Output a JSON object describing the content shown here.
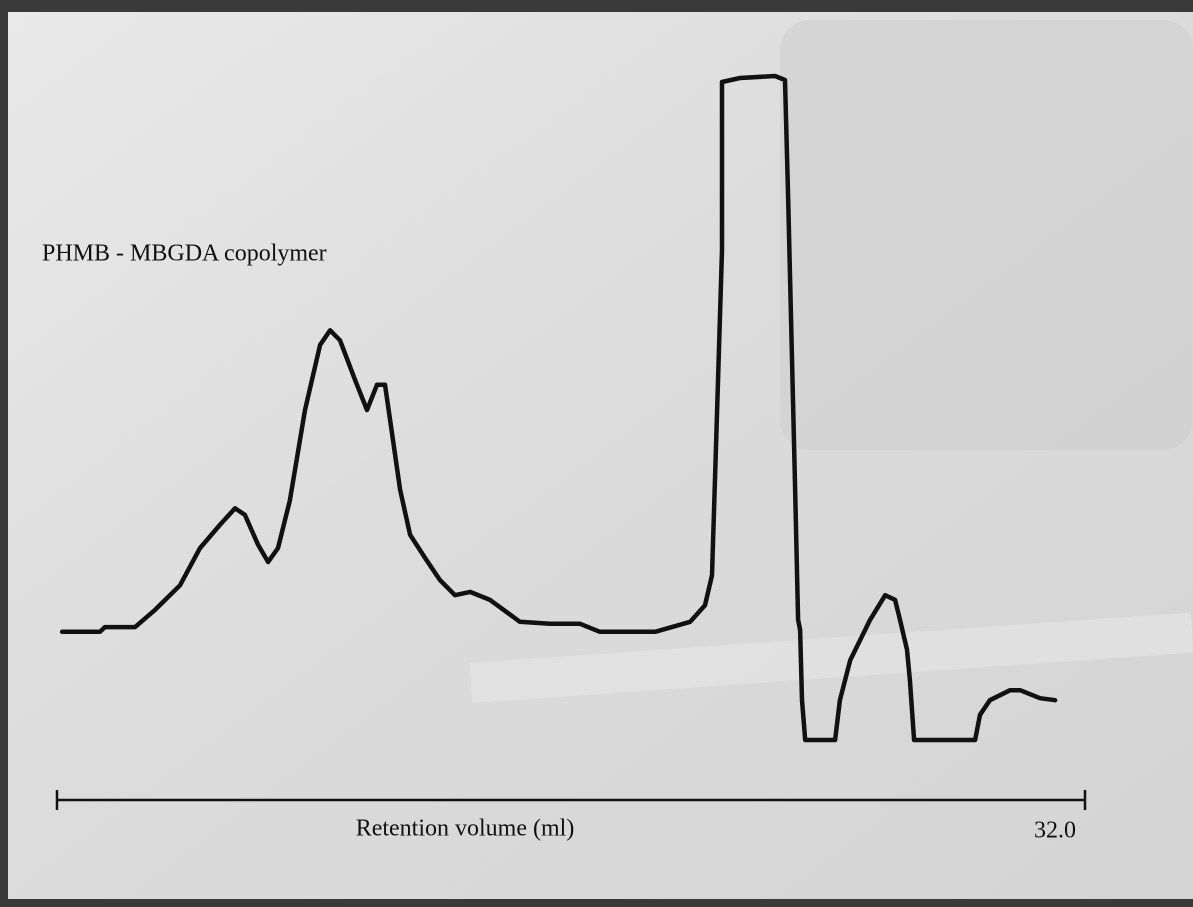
{
  "chart_data": {
    "type": "line",
    "annotation": "PHMB - MBGDA copolymer",
    "x_label": "Retention volume (ml)",
    "xlim": [
      0,
      32
    ],
    "xticks": [
      {
        "value": 32,
        "label": "32.0"
      }
    ],
    "ylim": [
      0,
      100
    ],
    "color": "#111111",
    "series": [
      {
        "x": [
          0.16,
          1.34,
          1.49,
          2.43,
          3.05,
          3.83,
          4.45,
          5.07,
          5.54,
          5.85,
          6.26,
          6.57,
          6.88,
          7.25,
          7.72,
          8.19,
          8.5,
          8.81,
          9.28,
          9.65,
          9.96,
          10.21,
          10.37,
          10.68,
          10.99,
          11.46,
          11.92,
          12.39,
          12.86,
          13.48,
          14.41,
          15.35,
          16.28,
          16.9,
          18.62,
          19.71,
          20.17,
          20.39,
          20.51,
          20.7,
          20.7,
          21.26,
          22.35,
          22.66,
          22.76,
          22.82,
          22.97,
          23.07,
          23.13,
          23.19,
          23.29,
          24.22,
          24.37,
          24.69,
          25.31,
          25.78,
          26.09,
          26.24,
          26.46,
          26.55,
          26.68,
          28.58,
          28.73,
          29.04,
          29.67,
          29.98,
          30.6,
          31.07
        ],
        "values": [
          16.3,
          16.3,
          17.0,
          17.0,
          19.6,
          23.3,
          28.9,
          32.4,
          34.9,
          33.9,
          29.4,
          26.8,
          28.9,
          36.1,
          49.7,
          59.5,
          61.7,
          60.2,
          54.2,
          49.7,
          53.5,
          53.5,
          48.2,
          37.7,
          30.9,
          27.4,
          24.1,
          21.8,
          22.3,
          21.1,
          17.8,
          17.5,
          17.5,
          16.3,
          16.3,
          17.8,
          20.3,
          24.8,
          43.7,
          73.8,
          99.1,
          99.7,
          100,
          99.4,
          81.3,
          69.3,
          39.2,
          18.1,
          16.6,
          6.0,
          0,
          0,
          6.0,
          12.0,
          18.1,
          21.8,
          21.1,
          18.1,
          13.6,
          9.0,
          0,
          0,
          3.8,
          6.0,
          7.5,
          7.5,
          6.3,
          6.0
        ]
      }
    ]
  }
}
